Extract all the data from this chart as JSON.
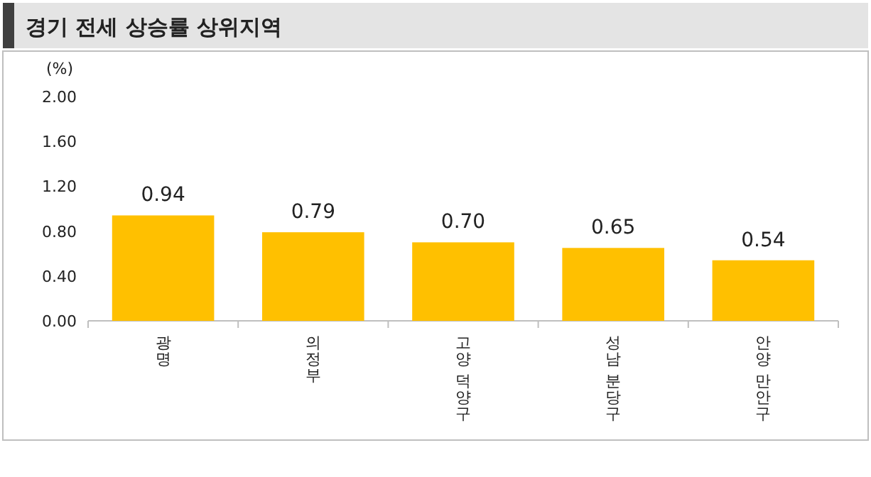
{
  "chart_data": {
    "type": "bar",
    "title": "경기 전세 상승률 상위지역",
    "ylabel": "(%)",
    "categories": [
      "광명",
      "의정부",
      "고양 덕양구",
      "성남 분당구",
      "안양 만안구"
    ],
    "values": [
      0.94,
      0.79,
      0.7,
      0.65,
      0.54
    ],
    "color": "#ffc000",
    "value_labels": [
      "0.94",
      "0.79",
      "0.70",
      "0.65",
      "0.54"
    ],
    "ylim": [
      0,
      2
    ],
    "yticks": [
      {
        "value": 0,
        "label": "0.00"
      },
      {
        "value": 0.4,
        "label": "0.40"
      },
      {
        "value": 0.8,
        "label": "0.80"
      },
      {
        "value": 1.2,
        "label": "1.20"
      },
      {
        "value": 1.6,
        "label": "1.60"
      },
      {
        "value": 2,
        "label": "2.00"
      }
    ],
    "grid": false
  }
}
